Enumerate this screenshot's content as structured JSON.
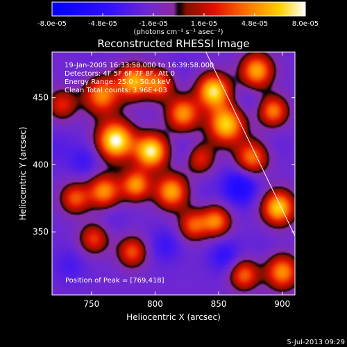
{
  "chart_data": {
    "type": "heatmap",
    "title": "Reconstructed RHESSI Image",
    "xlabel": "Heliocentric X (arcsec)",
    "ylabel": "Heliocentric Y (arcsec)",
    "xlim": [
      719,
      910
    ],
    "ylim": [
      303,
      484
    ],
    "x_ticks": [
      {
        "value": 750,
        "label": "750"
      },
      {
        "value": 800,
        "label": "800"
      },
      {
        "value": 850,
        "label": "850"
      },
      {
        "value": 900,
        "label": "900"
      }
    ],
    "y_ticks": [
      {
        "value": 350,
        "label": "350"
      },
      {
        "value": 400,
        "label": "400"
      },
      {
        "value": 450,
        "label": "450"
      }
    ],
    "colorbar": {
      "range": [
        -8e-05,
        8e-05
      ],
      "tick_values": [
        -8e-05,
        -4.8e-05,
        -1.6e-05,
        1.6e-05,
        4.8e-05,
        8e-05
      ],
      "tick_labels": [
        "-8.0e-05",
        "-4.8e-05",
        "-1.6e-05",
        "1.6e-05",
        "4.8e-05",
        "8.0e-05"
      ],
      "units": "(photons cm⁻² s⁻¹ asec⁻²)"
    },
    "annotations": [
      "19-Jan-2005 16:33:58.000 to 16:39:58.000",
      "Detectors: 4F 5F 6F 7F 8F, Att 0",
      "Energy Range: 25.0 - 50.0 keV",
      "Clean     Total counts: 3.96E+03"
    ],
    "peak_label": "Position of Peak = [769,418]",
    "peak": [
      769,
      418
    ],
    "limb_line": [
      [
        840,
        484
      ],
      [
        910,
        347
      ]
    ],
    "blobs": [
      {
        "x": 769,
        "y": 418,
        "v": 8e-05,
        "s": 10
      },
      {
        "x": 758,
        "y": 452,
        "v": 4.8e-05,
        "s": 10
      },
      {
        "x": 783,
        "y": 462,
        "v": 5.5e-05,
        "s": 9
      },
      {
        "x": 803,
        "y": 460,
        "v": 4e-05,
        "s": 8
      },
      {
        "x": 822,
        "y": 438,
        "v": 5e-05,
        "s": 9
      },
      {
        "x": 846,
        "y": 455,
        "v": 7e-05,
        "s": 9
      },
      {
        "x": 856,
        "y": 430,
        "v": 6.5e-05,
        "s": 10
      },
      {
        "x": 880,
        "y": 470,
        "v": 5.5e-05,
        "s": 9
      },
      {
        "x": 893,
        "y": 440,
        "v": 4.5e-05,
        "s": 8
      },
      {
        "x": 797,
        "y": 410,
        "v": 7.5e-05,
        "s": 9
      },
      {
        "x": 813,
        "y": 380,
        "v": 5.5e-05,
        "s": 9
      },
      {
        "x": 785,
        "y": 385,
        "v": 5e-05,
        "s": 8
      },
      {
        "x": 760,
        "y": 380,
        "v": 5e-05,
        "s": 9
      },
      {
        "x": 737,
        "y": 375,
        "v": 3.5e-05,
        "s": 8
      },
      {
        "x": 835,
        "y": 405,
        "v": 3e-05,
        "s": 8
      },
      {
        "x": 876,
        "y": 405,
        "v": 4.5e-05,
        "s": 9
      },
      {
        "x": 897,
        "y": 368,
        "v": 6.5e-05,
        "s": 9
      },
      {
        "x": 848,
        "y": 358,
        "v": 4.5e-05,
        "s": 8
      },
      {
        "x": 830,
        "y": 355,
        "v": 3.5e-05,
        "s": 8
      },
      {
        "x": 900,
        "y": 320,
        "v": 5e-05,
        "s": 9
      },
      {
        "x": 870,
        "y": 318,
        "v": 4e-05,
        "s": 8
      },
      {
        "x": 782,
        "y": 335,
        "v": 3.5e-05,
        "s": 8
      },
      {
        "x": 752,
        "y": 345,
        "v": 3e-05,
        "s": 8
      },
      {
        "x": 727,
        "y": 445,
        "v": 2.5e-05,
        "s": 8
      },
      {
        "x": 745,
        "y": 403,
        "v": -4e-05,
        "s": 9
      },
      {
        "x": 722,
        "y": 412,
        "v": -3e-05,
        "s": 9
      },
      {
        "x": 780,
        "y": 470,
        "v": -2e-05,
        "s": 7
      },
      {
        "x": 826,
        "y": 410,
        "v": -3.5e-05,
        "s": 8
      },
      {
        "x": 867,
        "y": 384,
        "v": -6e-05,
        "s": 10
      },
      {
        "x": 873,
        "y": 448,
        "v": -3e-05,
        "s": 8
      },
      {
        "x": 821,
        "y": 472,
        "v": -2.5e-05,
        "s": 8
      },
      {
        "x": 808,
        "y": 340,
        "v": -4e-05,
        "s": 9
      },
      {
        "x": 765,
        "y": 362,
        "v": -3e-05,
        "s": 9
      },
      {
        "x": 733,
        "y": 325,
        "v": -3.5e-05,
        "s": 9
      },
      {
        "x": 855,
        "y": 332,
        "v": -4.5e-05,
        "s": 9
      },
      {
        "x": 885,
        "y": 340,
        "v": -2.5e-05,
        "s": 8
      },
      {
        "x": 895,
        "y": 415,
        "v": -2.5e-05,
        "s": 8
      },
      {
        "x": 838,
        "y": 380,
        "v": -2.5e-05,
        "s": 8
      },
      {
        "x": 752,
        "y": 468,
        "v": -2.5e-05,
        "s": 8
      },
      {
        "x": 905,
        "y": 470,
        "v": -2e-05,
        "s": 7
      }
    ]
  },
  "footer": {
    "timestamp": "5-Jul-2013 09:29"
  },
  "colors": {
    "background": "#000000",
    "text": "#ffffff",
    "limb_line": "#ffffff"
  }
}
